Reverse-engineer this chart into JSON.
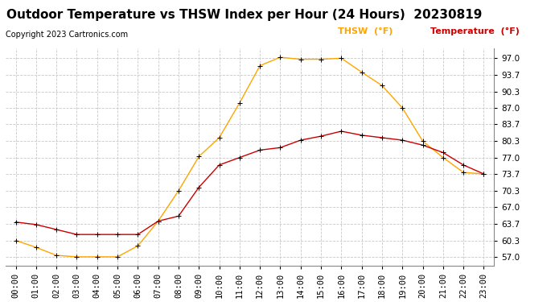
{
  "title": "Outdoor Temperature vs THSW Index per Hour (24 Hours)  20230819",
  "copyright": "Copyright 2023 Cartronics.com",
  "hours": [
    "00:00",
    "01:00",
    "02:00",
    "03:00",
    "04:00",
    "05:00",
    "06:00",
    "07:00",
    "08:00",
    "09:00",
    "10:00",
    "11:00",
    "12:00",
    "13:00",
    "14:00",
    "15:00",
    "16:00",
    "17:00",
    "18:00",
    "19:00",
    "20:00",
    "21:00",
    "22:00",
    "23:00"
  ],
  "thsw": [
    60.3,
    58.9,
    57.3,
    57.0,
    57.0,
    57.0,
    59.2,
    64.2,
    70.3,
    77.2,
    81.0,
    88.0,
    95.5,
    97.2,
    96.8,
    96.8,
    97.0,
    94.2,
    91.5,
    87.0,
    80.3,
    77.0,
    74.0,
    73.7
  ],
  "temp": [
    64.0,
    63.5,
    62.5,
    61.5,
    61.5,
    61.5,
    61.5,
    64.2,
    65.2,
    71.0,
    75.5,
    77.0,
    78.5,
    79.0,
    80.5,
    81.3,
    82.3,
    81.5,
    81.0,
    80.5,
    79.5,
    78.0,
    75.5,
    73.7
  ],
  "thsw_color": "#FFA500",
  "temp_color": "#CC0000",
  "background_color": "#ffffff",
  "grid_color": "#c8c8c8",
  "yticks": [
    57.0,
    60.3,
    63.7,
    67.0,
    70.3,
    73.7,
    77.0,
    80.3,
    83.7,
    87.0,
    90.3,
    93.7,
    97.0
  ],
  "ylim": [
    55.2,
    99.0
  ],
  "title_fontsize": 11,
  "copyright_fontsize": 7,
  "tick_fontsize": 7.5,
  "legend_thsw": "THSW  (°F)",
  "legend_temp": "Temperature  (°F)"
}
